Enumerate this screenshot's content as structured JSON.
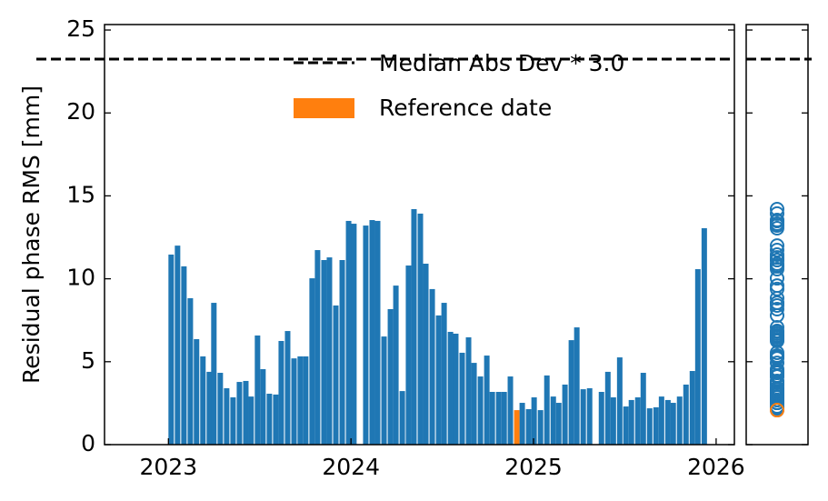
{
  "chart_data": {
    "type": "bar",
    "ylabel": "Residual phase RMS [mm]",
    "x": [
      2023.015,
      2023.05,
      2023.085,
      2023.12,
      2023.154,
      2023.189,
      2023.224,
      2023.249,
      2023.284,
      2023.319,
      2023.354,
      2023.389,
      2023.424,
      2023.453,
      2023.488,
      2023.518,
      2023.553,
      2023.588,
      2023.618,
      2023.653,
      2023.688,
      2023.722,
      2023.752,
      2023.787,
      2023.817,
      2023.852,
      2023.882,
      2023.917,
      2023.952,
      2023.987,
      2024.016,
      2024.081,
      2024.116,
      2024.146,
      2024.181,
      2024.216,
      2024.246,
      2024.281,
      2024.315,
      2024.345,
      2024.38,
      2024.41,
      2024.445,
      2024.48,
      2024.51,
      2024.545,
      2024.574,
      2024.609,
      2024.644,
      2024.674,
      2024.709,
      2024.744,
      2024.774,
      2024.809,
      2024.839,
      2024.873,
      2024.938,
      2024.973,
      2025.003,
      2025.038,
      2025.073,
      2025.108,
      2025.138,
      2025.172,
      2025.207,
      2025.237,
      2025.272,
      2025.307,
      2025.372,
      2025.407,
      2025.437,
      2025.472,
      2025.506,
      2025.536,
      2025.571,
      2025.601,
      2025.636,
      2025.671,
      2025.701,
      2025.736,
      2025.765,
      2025.8,
      2025.835,
      2025.87,
      2025.9,
      2025.935
    ],
    "series": [
      {
        "color": "#1f77b4",
        "values": [
          11.46,
          12.0,
          10.75,
          8.83,
          6.36,
          5.32,
          4.39,
          8.55,
          4.33,
          3.4,
          2.85,
          3.78,
          3.84,
          2.9,
          6.58,
          4.55,
          3.07,
          3.02,
          6.25,
          6.85,
          5.2,
          5.32,
          5.32,
          10.03,
          11.73,
          11.13,
          11.29,
          8.39,
          11.13,
          13.49,
          13.32,
          13.21,
          13.54,
          13.49,
          6.52,
          8.17,
          9.59,
          3.23,
          10.8,
          14.2,
          13.93,
          10.91,
          9.38,
          7.79,
          8.55,
          6.8,
          6.69,
          5.54,
          6.47,
          4.93,
          4.11,
          5.37,
          3.18,
          3.18,
          3.18,
          4.11,
          2.52,
          2.14,
          2.85,
          2.08,
          4.17,
          2.9,
          2.52,
          3.62,
          6.3,
          7.07,
          3.34,
          3.4,
          3.18,
          4.39,
          2.85,
          5.26,
          2.3,
          2.69,
          2.85,
          4.33,
          2.19,
          2.25,
          2.9,
          2.69,
          2.52,
          2.9,
          3.62,
          4.44,
          10.58,
          13.05
        ]
      }
    ],
    "reference": {
      "name": "Reference date",
      "color": "#ff7f0e",
      "x": 2024.908,
      "value": 2.08
    },
    "threshold": {
      "name": "Median Abs Dev * 3.0",
      "value": 23.25,
      "color": "#000000"
    },
    "xlim": [
      2022.65,
      2026.1
    ],
    "xticks": [
      2023,
      2024,
      2025,
      2026
    ],
    "ylim": [
      0,
      25.33
    ],
    "yticks": [
      0,
      5,
      10,
      15,
      20,
      25
    ],
    "side_panel": {
      "type": "scatter"
    }
  }
}
